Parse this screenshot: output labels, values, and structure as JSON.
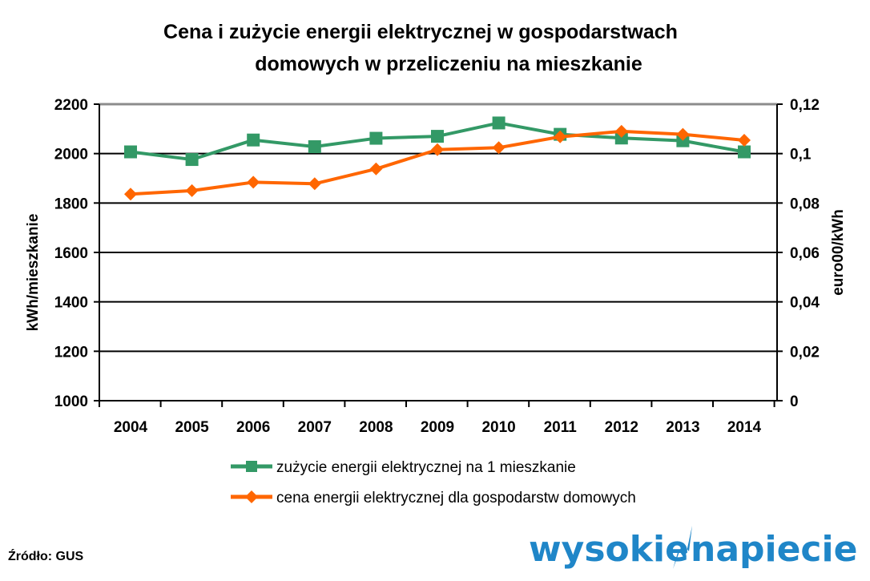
{
  "chart_data": {
    "type": "line",
    "title_line1": "Cena i zużycie energii elektrycznej w gospodarstwach",
    "title_line2": "domowych w przeliczeniu na mieszkanie",
    "x": [
      "2004",
      "2005",
      "2006",
      "2007",
      "2008",
      "2009",
      "2010",
      "2011",
      "2012",
      "2013",
      "2014"
    ],
    "ylabel_left": "kWh/mieszkanie",
    "ylabel_right": "euro00/kWh",
    "ylim_left": [
      1000,
      2200
    ],
    "ylim_right": [
      0,
      0.12
    ],
    "yticks_left": [
      "1000",
      "1200",
      "1400",
      "1600",
      "1800",
      "2000",
      "2200"
    ],
    "yticks_right": [
      "0",
      "0,02",
      "0,04",
      "0,06",
      "0,08",
      "0,1",
      "0,12"
    ],
    "grid": true,
    "legend_position": "bottom",
    "series": [
      {
        "name": "zużycie energii elektrycznej na 1 mieszkanie",
        "axis": "left",
        "color": "#339966",
        "marker": "square",
        "values": [
          2007,
          1976,
          2055,
          2028,
          2062,
          2070,
          2124,
          2078,
          2063,
          2052,
          2007
        ]
      },
      {
        "name": "cena energii elektrycznej dla gospodarstw domowych",
        "axis": "right",
        "color": "#ff6600",
        "marker": "diamond",
        "values": [
          0.0836,
          0.085,
          0.0884,
          0.0878,
          0.0938,
          0.1016,
          0.1024,
          0.1068,
          0.109,
          0.1078,
          0.1054
        ]
      }
    ]
  },
  "footer": {
    "source": "Źródło: GUS",
    "logo_part1": "wysokie",
    "logo_part2": "napiecie.pl"
  }
}
